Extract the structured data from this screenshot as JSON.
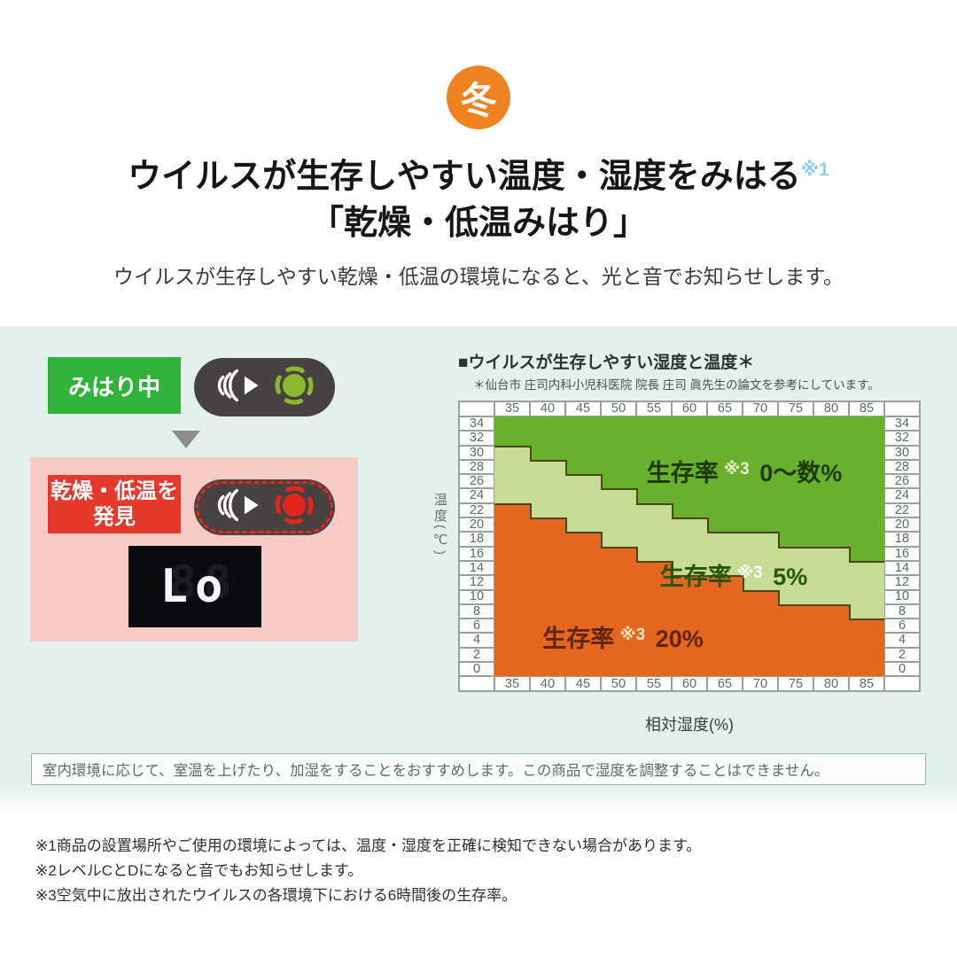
{
  "header": {
    "season_badge": "冬",
    "title_line1": "ウイルスが生存しやすい温度・湿度をみはる",
    "title_sup": "※1",
    "title_line2": "「乾燥・低温みはり」",
    "description": "ウイルスが生存しやすい乾燥・低温の環境になると、光と音でお知らせします。"
  },
  "status_demo": {
    "watching_label": "みはり中",
    "detect_label_line1": "乾燥・低温を",
    "detect_label_line2": "発見",
    "display_value": "Lo",
    "display_ghost": "88",
    "icons": {
      "sound": "sound-waves-icon",
      "lamp_green": "lamp-on-green-icon",
      "lamp_red": "lamp-on-red-icon",
      "arrow": "down-triangle-icon"
    },
    "colors": {
      "watching_badge": "#31b23a",
      "detect_badge": "#e6392b",
      "pill": "#474241",
      "pink_panel": "#f8cbc6",
      "lamp_green": "#8cb82e",
      "lamp_red": "#e3251c"
    }
  },
  "chart_data": {
    "type": "heatmap",
    "title": "■ウイルスが生存しやすい湿度と温度＊",
    "source_note": "＊仙台市 庄司内科小児科医院 院長 庄司 眞先生の論文を参考にしています。",
    "xlabel": "相対湿度(%)",
    "ylabel": "温度(℃)",
    "x_axis_range": [
      35,
      85
    ],
    "y_axis_range": [
      0,
      34
    ],
    "humidity_percent": [
      35,
      40,
      45,
      50,
      55,
      60,
      65,
      70,
      75,
      80,
      85
    ],
    "temperature_c": [
      34,
      32,
      30,
      28,
      26,
      24,
      22,
      20,
      18,
      16,
      14,
      12,
      10,
      8,
      6,
      4,
      2,
      0
    ],
    "zones": [
      {
        "name": "dark-green",
        "label": "生存率",
        "sup": "※3",
        "value": "0〜数%",
        "color": "#69b02c"
      },
      {
        "name": "light-green",
        "label": "生存率",
        "sup": "※3",
        "value": "5%",
        "color": "#c6db94"
      },
      {
        "name": "orange",
        "label": "生存率",
        "sup": "※3",
        "value": "20%",
        "color": "#e5661e"
      }
    ],
    "light_green_top_temp_by_humidity": [
      30,
      28,
      26,
      24,
      22,
      20,
      18,
      18,
      16,
      16,
      14
    ],
    "orange_top_temp_by_humidity": [
      22,
      20,
      18,
      16,
      14,
      12,
      12,
      10,
      8,
      8,
      6
    ],
    "boundary_line_color": "#4e4414",
    "grid_on": false,
    "legend_position": "labels-inside-zones"
  },
  "notice": "室内環境に応じて、室温を上げたり、加湿をすることをおすすめします。この商品で湿度を調整することはできません。",
  "footnotes": [
    "※1商品の設置場所やご使用の環境によっては、温度・湿度を正確に検知できない場合があります。",
    "※2レベルCとDになると音でもお知らせします。",
    "※3空気中に放出されたウイルスの各環境下における6時間後の生存率。"
  ]
}
